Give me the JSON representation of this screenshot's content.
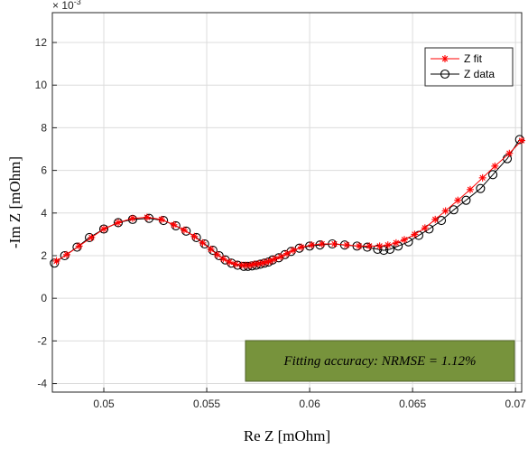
{
  "chart_data": {
    "type": "line",
    "title": "",
    "xlabel": "Re Z [mOhm]",
    "ylabel": "-Im Z [mOhm]",
    "xlim": [
      0.0475,
      0.0703
    ],
    "ylim": [
      -4.4,
      13.4
    ],
    "y_exponent_label": "× 10",
    "y_exponent_power": "-3",
    "x_ticks": [
      0.05,
      0.055,
      0.06,
      0.065,
      0.07
    ],
    "x_tick_labels": [
      "0.05",
      "0.055",
      "0.06",
      "0.065",
      "0.07"
    ],
    "y_ticks": [
      -4,
      -2,
      0,
      2,
      4,
      6,
      8,
      10,
      12
    ],
    "y_tick_labels": [
      "-4",
      "-2",
      "0",
      "2",
      "4",
      "6",
      "8",
      "10",
      "12"
    ],
    "grid": true,
    "legend_position": "top-right",
    "series": [
      {
        "name": "Z fit",
        "color": "#ff0000",
        "marker": "asterisk",
        "x": [
          0.0477,
          0.0482,
          0.0488,
          0.0494,
          0.05,
          0.0507,
          0.0514,
          0.0521,
          0.0528,
          0.0534,
          0.0539,
          0.0544,
          0.0548,
          0.0552,
          0.0555,
          0.0558,
          0.0561,
          0.0564,
          0.0567,
          0.0569,
          0.0571,
          0.0573,
          0.0575,
          0.0577,
          0.0579,
          0.0581,
          0.0583,
          0.0586,
          0.0589,
          0.0592,
          0.0596,
          0.0601,
          0.0606,
          0.0612,
          0.0618,
          0.0624,
          0.0629,
          0.0634,
          0.0638,
          0.0642,
          0.0646,
          0.0651,
          0.0656,
          0.0661,
          0.0666,
          0.0672,
          0.0678,
          0.0684,
          0.069,
          0.0697,
          0.0703
        ],
        "y": [
          1.75,
          2.05,
          2.45,
          2.85,
          3.25,
          3.55,
          3.75,
          3.8,
          3.7,
          3.45,
          3.2,
          2.9,
          2.6,
          2.3,
          2.05,
          1.85,
          1.7,
          1.6,
          1.55,
          1.55,
          1.55,
          1.6,
          1.62,
          1.65,
          1.7,
          1.75,
          1.85,
          1.95,
          2.1,
          2.25,
          2.4,
          2.5,
          2.55,
          2.55,
          2.5,
          2.45,
          2.45,
          2.45,
          2.5,
          2.6,
          2.75,
          3.0,
          3.3,
          3.7,
          4.1,
          4.6,
          5.1,
          5.65,
          6.2,
          6.8,
          7.4
        ]
      },
      {
        "name": "Z data",
        "color": "#000000",
        "marker": "circle",
        "x": [
          0.0476,
          0.0481,
          0.0487,
          0.0493,
          0.05,
          0.0507,
          0.0514,
          0.0522,
          0.0529,
          0.0535,
          0.054,
          0.0545,
          0.0549,
          0.0553,
          0.0556,
          0.0559,
          0.0562,
          0.0565,
          0.0568,
          0.057,
          0.0572,
          0.0574,
          0.0576,
          0.0578,
          0.058,
          0.0582,
          0.0585,
          0.0588,
          0.0591,
          0.0595,
          0.06,
          0.0605,
          0.0611,
          0.0617,
          0.0623,
          0.0628,
          0.0633,
          0.0636,
          0.0639,
          0.0643,
          0.0648,
          0.0653,
          0.0658,
          0.0664,
          0.067,
          0.0676,
          0.0683,
          0.0689,
          0.0696,
          0.0702
        ],
        "y": [
          1.65,
          2.0,
          2.4,
          2.85,
          3.25,
          3.55,
          3.7,
          3.75,
          3.65,
          3.4,
          3.15,
          2.85,
          2.55,
          2.25,
          2.0,
          1.8,
          1.65,
          1.55,
          1.5,
          1.5,
          1.52,
          1.55,
          1.6,
          1.65,
          1.7,
          1.8,
          1.9,
          2.05,
          2.2,
          2.35,
          2.45,
          2.5,
          2.55,
          2.5,
          2.45,
          2.4,
          2.3,
          2.25,
          2.3,
          2.45,
          2.65,
          2.95,
          3.25,
          3.65,
          4.15,
          4.6,
          5.15,
          5.8,
          6.55,
          7.45
        ]
      }
    ],
    "annotation": {
      "text": "Fitting accuracy: NRMSE = 1.12%",
      "background": "#77933c",
      "border": "#4f6228"
    }
  }
}
